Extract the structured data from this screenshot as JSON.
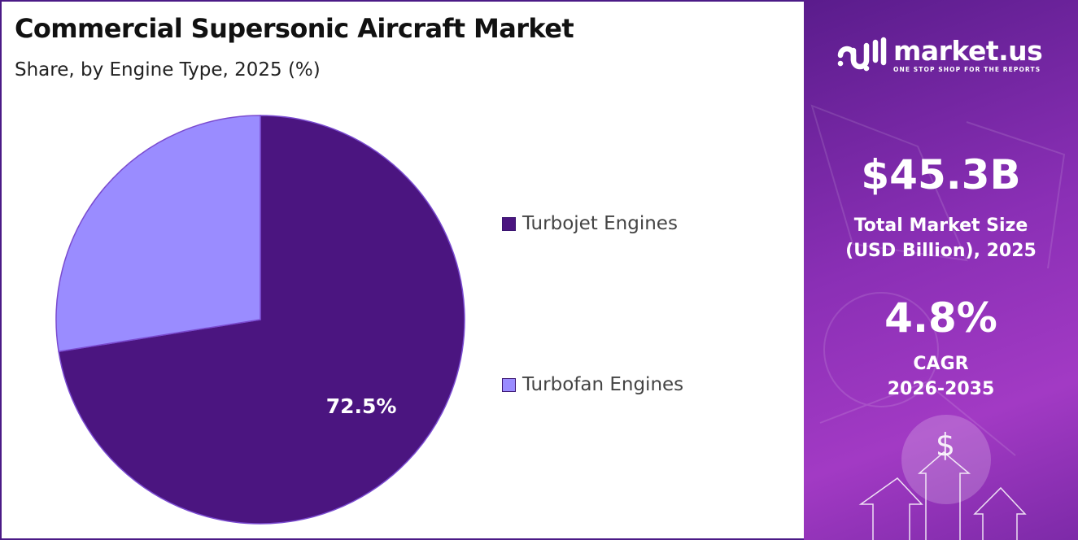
{
  "title": "Commercial Supersonic Aircraft Market",
  "subtitle": "Share, by Engine Type, 2025 (%)",
  "chart_data": {
    "type": "pie",
    "categories": [
      "Turbojet Engines",
      "Turbofan Engines"
    ],
    "values": [
      72.5,
      27.5
    ],
    "colors": [
      "#4b1580",
      "#9a8cff"
    ],
    "data_labels": [
      "72.5%",
      ""
    ],
    "legend_position": "right"
  },
  "panel": {
    "brand": {
      "name": "market.us",
      "tagline": "ONE STOP SHOP FOR THE REPORTS",
      "logo_icon": "market-us-logo-icon"
    },
    "market_size_value": "$45.3B",
    "market_size_label_line1": "Total Market Size",
    "market_size_label_line2": "(USD Billion), 2025",
    "cagr_value": "4.8%",
    "cagr_label_line1": "CAGR",
    "cagr_label_line2": "2026-2035",
    "decor_icons": [
      "dollar-icon",
      "arrow-up-icon"
    ]
  }
}
